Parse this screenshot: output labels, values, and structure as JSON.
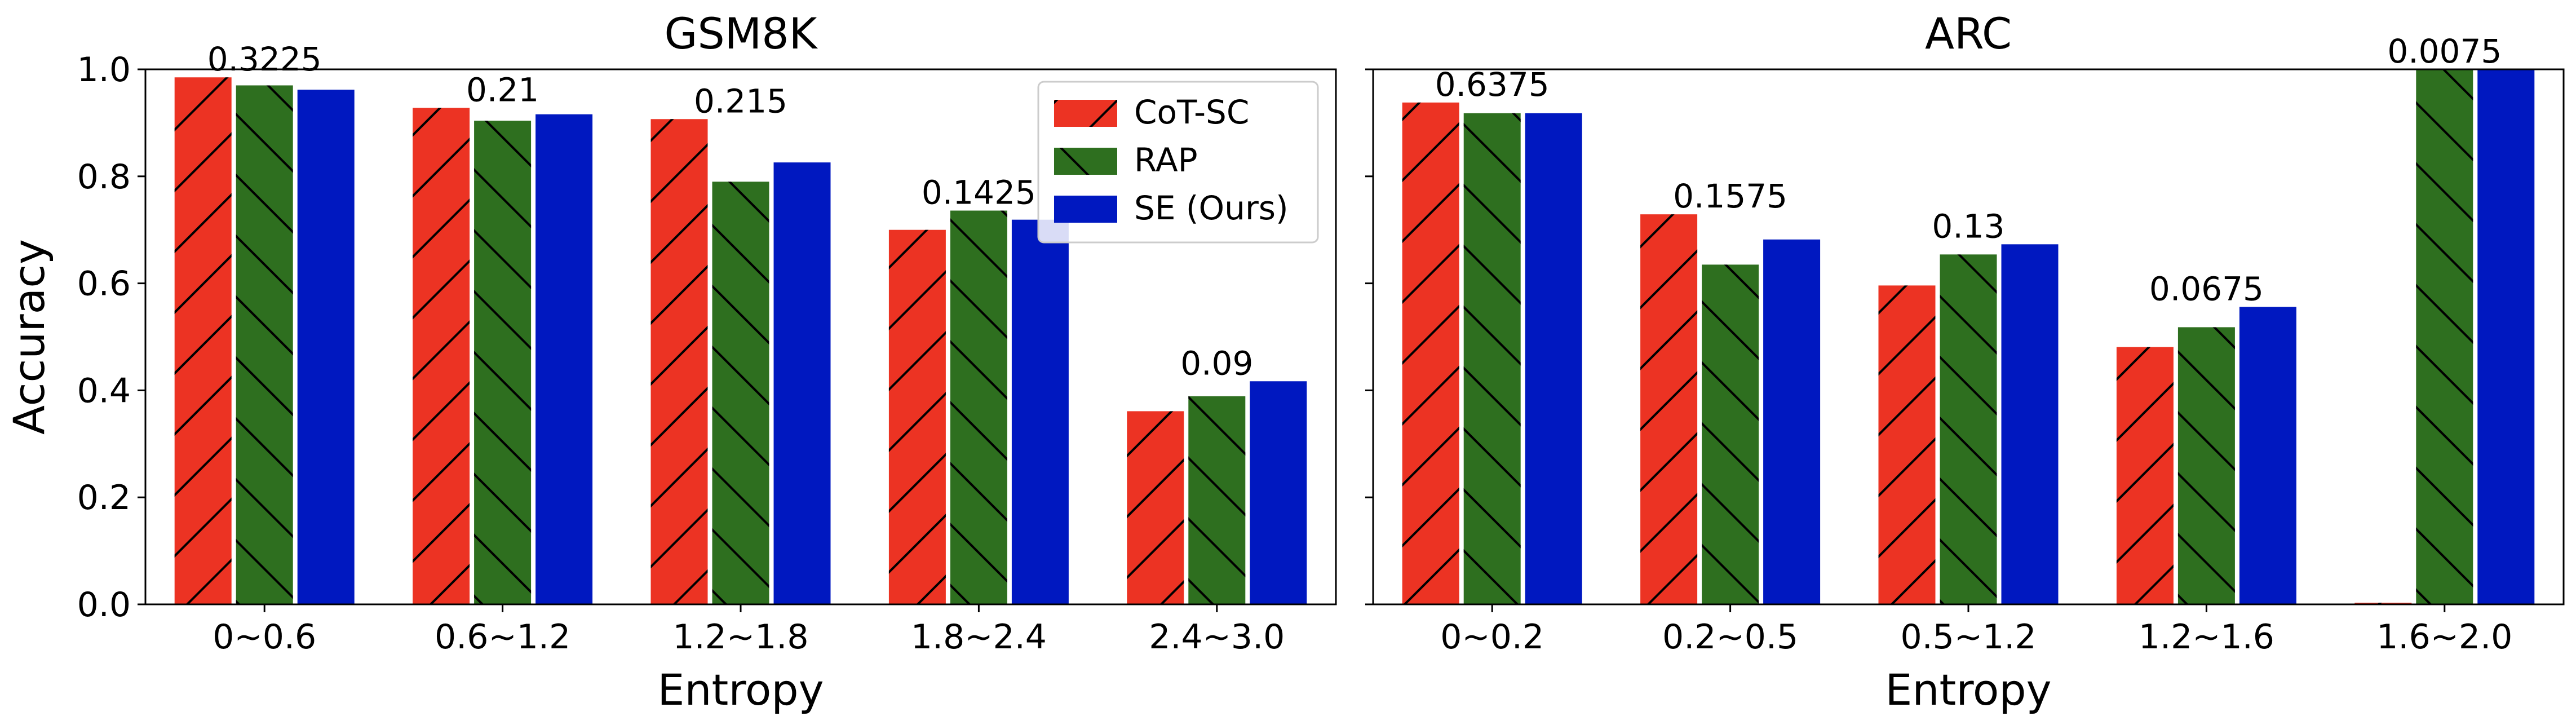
{
  "chart_data": [
    {
      "type": "bar",
      "title": "GSM8K",
      "xlabel": "Entropy",
      "ylabel": "Accuracy",
      "ylim": [
        0,
        1.0
      ],
      "yticks": [
        0.0,
        0.2,
        0.4,
        0.6,
        0.8,
        1.0
      ],
      "categories": [
        "0~0.6",
        "0.6~1.2",
        "1.2~1.8",
        "1.8~2.4",
        "2.4~3.0"
      ],
      "group_labels": [
        "0.3225",
        "0.21",
        "0.215",
        "0.1425",
        "0.09"
      ],
      "series": [
        {
          "name": "CoT-SC",
          "values": [
            0.985,
            0.928,
            0.907,
            0.7,
            0.361
          ]
        },
        {
          "name": "RAP",
          "values": [
            0.97,
            0.904,
            0.79,
            0.736,
            0.389
          ]
        },
        {
          "name": "SE (Ours)",
          "values": [
            0.962,
            0.916,
            0.826,
            0.719,
            0.417
          ]
        }
      ],
      "legend": "top-right"
    },
    {
      "type": "bar",
      "title": "ARC",
      "xlabel": "Entropy",
      "ylabel": "",
      "ylim": [
        0,
        1.0
      ],
      "categories": [
        "0~0.2",
        "0.2~0.5",
        "0.5~1.2",
        "1.2~1.6",
        "1.6~2.0"
      ],
      "group_labels": [
        "0.6375",
        "0.1575",
        "0.13",
        "0.0675",
        "0.0075"
      ],
      "series": [
        {
          "name": "CoT-SC",
          "values": [
            0.938,
            0.729,
            0.596,
            0.481,
            0.003
          ]
        },
        {
          "name": "RAP",
          "values": [
            0.918,
            0.635,
            0.654,
            0.518,
            1.0
          ]
        },
        {
          "name": "SE (Ours)",
          "values": [
            0.918,
            0.682,
            0.673,
            0.556,
            1.0
          ]
        }
      ]
    }
  ],
  "colors": {
    "CoT-SC": "#ec3323",
    "RAP": "#2e6f1f",
    "SE (Ours)": "#0018c0"
  }
}
